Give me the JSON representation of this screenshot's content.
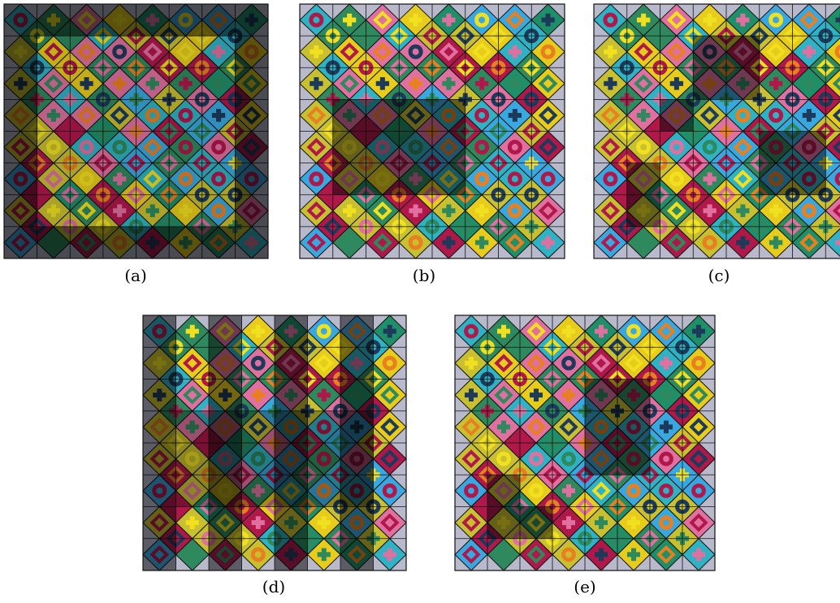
{
  "figure": {
    "captions": [
      "(a)",
      "(b)",
      "(c)",
      "(d)",
      "(e)"
    ]
  }
}
